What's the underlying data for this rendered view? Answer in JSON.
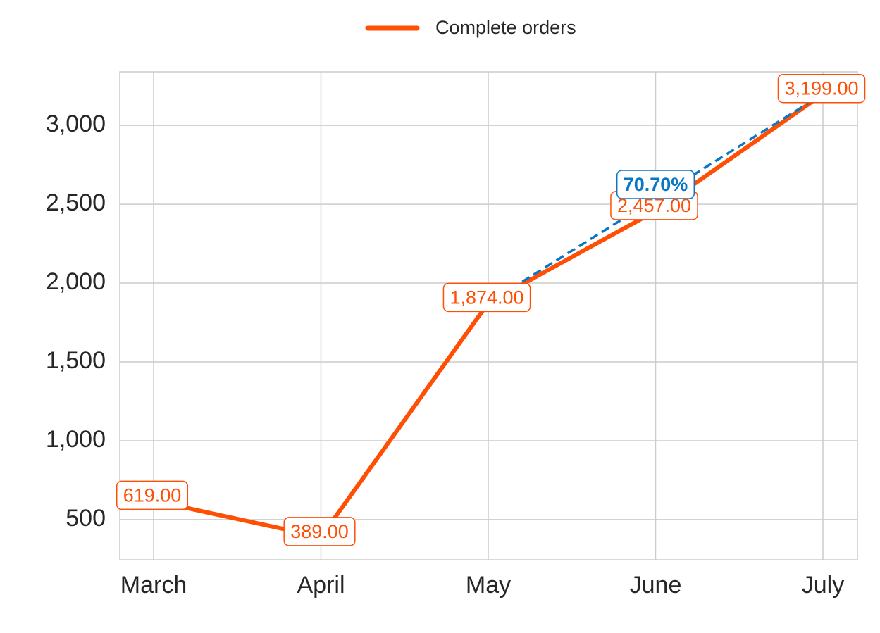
{
  "chart_data": {
    "type": "line",
    "categories": [
      "March",
      "April",
      "May",
      "June",
      "July"
    ],
    "series": [
      {
        "name": "Complete orders",
        "color": "#ff4f05",
        "values": [
          619,
          389,
          1874,
          2457,
          3199
        ],
        "value_labels": [
          "619.00",
          "389.00",
          "1,874.00",
          "2,457.00",
          "3,199.00"
        ]
      }
    ],
    "annotations": [
      {
        "from": "May",
        "to": "July",
        "text": "70.70%",
        "color": "#0a77c4"
      }
    ],
    "ylim": [
      245,
      3340
    ],
    "yticks": [
      {
        "value": 500,
        "label": "500"
      },
      {
        "value": 1000,
        "label": "1,000"
      },
      {
        "value": 1500,
        "label": "1,500"
      },
      {
        "value": 2000,
        "label": "2,000"
      },
      {
        "value": 2500,
        "label": "2,500"
      },
      {
        "value": 3000,
        "label": "3,000"
      }
    ],
    "grid": true,
    "legend": "top"
  }
}
